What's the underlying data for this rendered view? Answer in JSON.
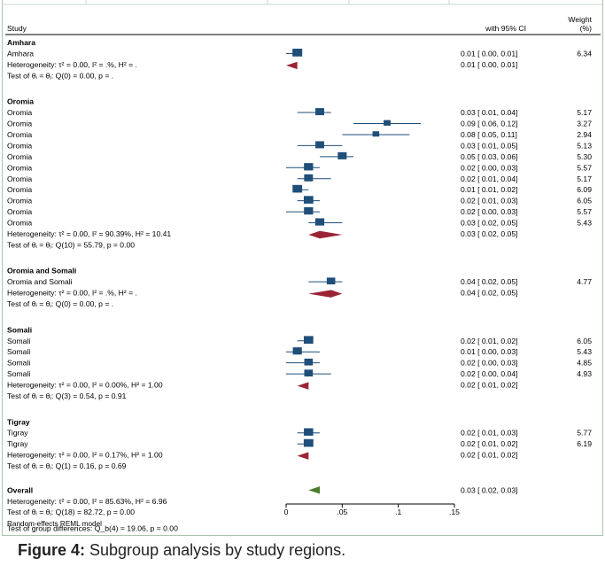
{
  "chart_data": {
    "type": "forest",
    "header": {
      "study": "Study",
      "ci": "with 95% CI",
      "weight": [
        "Weight",
        "(%)"
      ]
    },
    "xlim": [
      0,
      0.15
    ],
    "xticks": [
      {
        "value": 0,
        "label": "0"
      },
      {
        "value": 0.05,
        "label": ".05"
      },
      {
        "value": 0.1,
        "label": ".1"
      },
      {
        "value": 0.15,
        "label": ".15"
      }
    ],
    "footer": "Random-effects REML model",
    "colors": {
      "study": "#1f4e79",
      "subgroup_diamond": "#9b2335",
      "overall_diamond": "#4a7c2a"
    },
    "groups": [
      {
        "name": "Amhara",
        "studies": [
          {
            "label": "Amhara",
            "est": 0.01,
            "lo": 0.0,
            "hi": 0.01,
            "ci": "0.01 [ 0.00, 0.01]",
            "weight": "6.34"
          }
        ],
        "heterogeneity": "Heterogeneity: τ² = 0.00, I² = .%, H² = .",
        "pooled": {
          "est": 0.01,
          "lo": 0.0,
          "hi": 0.01,
          "ci": "0.01 [ 0.00, 0.01]"
        },
        "test": "Test of θᵢ = θⱼ: Q(0) = 0.00, p = ."
      },
      {
        "name": "Oromia",
        "studies": [
          {
            "label": "Oromia",
            "est": 0.03,
            "lo": 0.01,
            "hi": 0.04,
            "ci": "0.03 [ 0.01, 0.04]",
            "weight": "5.17"
          },
          {
            "label": "Oromia",
            "est": 0.09,
            "lo": 0.06,
            "hi": 0.12,
            "ci": "0.09 [ 0.06, 0.12]",
            "weight": "3.27"
          },
          {
            "label": "Oromia",
            "est": 0.08,
            "lo": 0.05,
            "hi": 0.11,
            "ci": "0.08 [ 0.05, 0.11]",
            "weight": "2.94"
          },
          {
            "label": "Oromia",
            "est": 0.03,
            "lo": 0.01,
            "hi": 0.05,
            "ci": "0.03 [ 0.01, 0.05]",
            "weight": "5.13"
          },
          {
            "label": "Oromia",
            "est": 0.05,
            "lo": 0.03,
            "hi": 0.06,
            "ci": "0.05 [ 0.03, 0.06]",
            "weight": "5.30"
          },
          {
            "label": "Oromia",
            "est": 0.02,
            "lo": 0.0,
            "hi": 0.03,
            "ci": "0.02 [ 0.00, 0.03]",
            "weight": "5.57"
          },
          {
            "label": "Oromia",
            "est": 0.02,
            "lo": 0.01,
            "hi": 0.04,
            "ci": "0.02 [ 0.01, 0.04]",
            "weight": "5.17"
          },
          {
            "label": "Oromia",
            "est": 0.01,
            "lo": 0.01,
            "hi": 0.02,
            "ci": "0.01 [ 0.01, 0.02]",
            "weight": "6.09"
          },
          {
            "label": "Oromia",
            "est": 0.02,
            "lo": 0.01,
            "hi": 0.03,
            "ci": "0.02 [ 0.01, 0.03]",
            "weight": "6.05"
          },
          {
            "label": "Oromia",
            "est": 0.02,
            "lo": 0.0,
            "hi": 0.03,
            "ci": "0.02 [ 0.00, 0.03]",
            "weight": "5.57"
          },
          {
            "label": "Oromia",
            "est": 0.03,
            "lo": 0.02,
            "hi": 0.05,
            "ci": "0.03 [ 0.02, 0.05]",
            "weight": "5.43"
          }
        ],
        "heterogeneity": "Heterogeneity: τ² = 0.00, I² = 90.39%, H² = 10.41",
        "pooled": {
          "est": 0.03,
          "lo": 0.02,
          "hi": 0.05,
          "ci": "0.03 [ 0.02, 0.05]"
        },
        "test": "Test of θᵢ = θⱼ: Q(10) = 55.79, p = 0.00"
      },
      {
        "name": "Oromia and Somali",
        "studies": [
          {
            "label": "Oromia and Somali",
            "est": 0.04,
            "lo": 0.02,
            "hi": 0.05,
            "ci": "0.04 [ 0.02, 0.05]",
            "weight": "4.77"
          }
        ],
        "heterogeneity": "Heterogeneity: τ² = 0.00, I² = .%, H² = .",
        "pooled": {
          "est": 0.04,
          "lo": 0.02,
          "hi": 0.05,
          "ci": "0.04 [ 0.02, 0.05]"
        },
        "test": "Test of θᵢ = θⱼ: Q(0) = 0.00, p = ."
      },
      {
        "name": "Somali",
        "studies": [
          {
            "label": "Somali",
            "est": 0.02,
            "lo": 0.01,
            "hi": 0.02,
            "ci": "0.02 [ 0.01, 0.02]",
            "weight": "6.05"
          },
          {
            "label": "Somali",
            "est": 0.01,
            "lo": 0.0,
            "hi": 0.03,
            "ci": "0.01 [ 0.00, 0.03]",
            "weight": "5.43"
          },
          {
            "label": "Somali",
            "est": 0.02,
            "lo": 0.0,
            "hi": 0.03,
            "ci": "0.02 [ 0.00, 0.03]",
            "weight": "4.85"
          },
          {
            "label": "Somali",
            "est": 0.02,
            "lo": 0.0,
            "hi": 0.04,
            "ci": "0.02 [ 0.00, 0.04]",
            "weight": "4.93"
          }
        ],
        "heterogeneity": "Heterogeneity: τ² = 0.00, I² = 0.00%, H² = 1.00",
        "pooled": {
          "est": 0.02,
          "lo": 0.01,
          "hi": 0.02,
          "ci": "0.02 [ 0.01, 0.02]"
        },
        "test": "Test of θᵢ = θⱼ: Q(3) = 0.54, p = 0.91"
      },
      {
        "name": "Tigray",
        "studies": [
          {
            "label": "Tigray",
            "est": 0.02,
            "lo": 0.01,
            "hi": 0.03,
            "ci": "0.02 [ 0.01, 0.03]",
            "weight": "5.77"
          },
          {
            "label": "Tigray",
            "est": 0.02,
            "lo": 0.01,
            "hi": 0.02,
            "ci": "0.02 [ 0.01, 0.02]",
            "weight": "6.19"
          }
        ],
        "heterogeneity": "Heterogeneity: τ² = 0.00, I² = 0.17%, H² = 1.00",
        "pooled": {
          "est": 0.02,
          "lo": 0.01,
          "hi": 0.02,
          "ci": "0.02 [ 0.01, 0.02]"
        },
        "test": "Test of θᵢ = θⱼ: Q(1) = 0.16, p = 0.69"
      }
    ],
    "overall": {
      "name": "Overall",
      "heterogeneity": "Heterogeneity: τ² = 0.00, I² = 85.63%, H² = 6.96",
      "pooled": {
        "est": 0.03,
        "lo": 0.02,
        "hi": 0.03,
        "ci": "0.03 [ 0.02, 0.03]"
      },
      "test": "Test of θᵢ = θⱼ: Q(18) = 82.72, p = 0.00",
      "group_test": "Test of group differences: Q_b(4) = 19.06, p = 0.00"
    }
  },
  "caption": {
    "label": "Figure 4:",
    "text": " Subgroup analysis by study regions."
  }
}
